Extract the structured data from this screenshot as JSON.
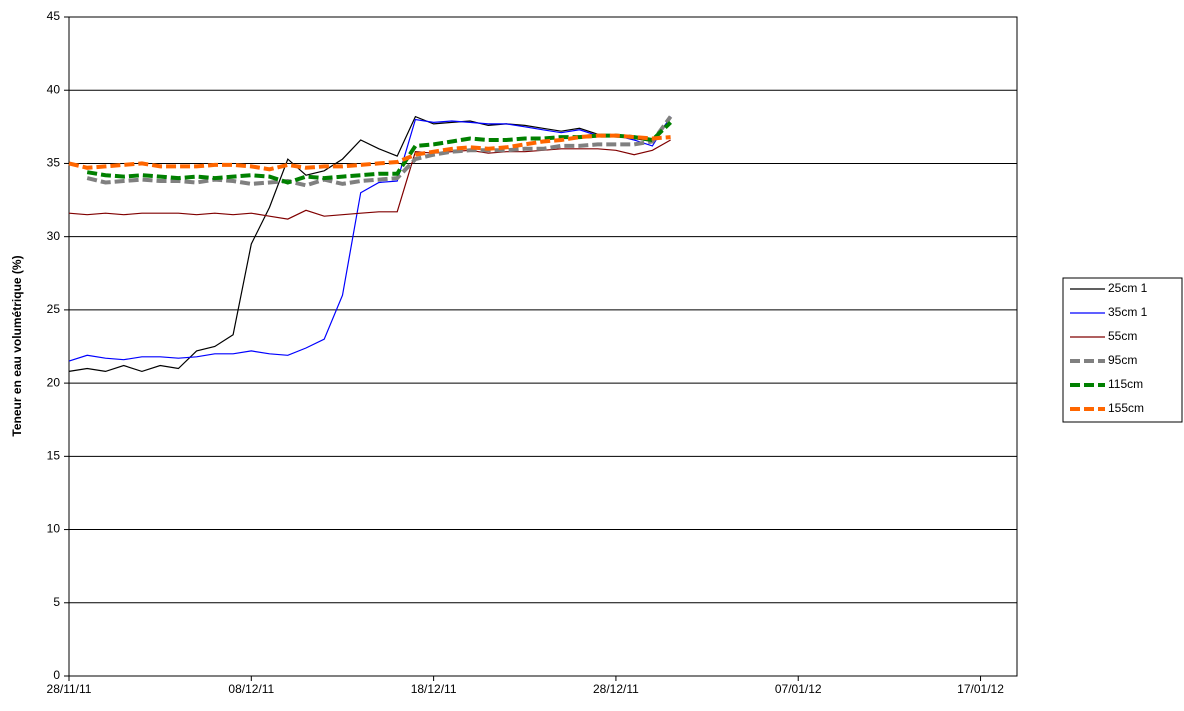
{
  "chart_data": {
    "type": "line",
    "ylabel": "Teneur en eau volumétrique (%)",
    "x": [
      "2011-11-28",
      "2011-11-29",
      "2011-11-30",
      "2011-12-01",
      "2011-12-02",
      "2011-12-03",
      "2011-12-04",
      "2011-12-05",
      "2011-12-06",
      "2011-12-07",
      "2011-12-08",
      "2011-12-09",
      "2011-12-10",
      "2011-12-11",
      "2011-12-12",
      "2011-12-13",
      "2011-12-14",
      "2011-12-15",
      "2011-12-16",
      "2011-12-17",
      "2011-12-18",
      "2011-12-19",
      "2011-12-20",
      "2011-12-21",
      "2011-12-22",
      "2011-12-23",
      "2011-12-24",
      "2011-12-25",
      "2011-12-26",
      "2011-12-27",
      "2011-12-28",
      "2011-12-29",
      "2011-12-30",
      "2011-12-31"
    ],
    "xlim": [
      "2011-11-28",
      "2012-01-19"
    ],
    "xticks": [
      {
        "value": "2011-11-28",
        "label": "28/11/11"
      },
      {
        "value": "2011-12-08",
        "label": "08/12/11"
      },
      {
        "value": "2011-12-18",
        "label": "18/12/11"
      },
      {
        "value": "2011-12-28",
        "label": "28/12/11"
      },
      {
        "value": "2012-01-07",
        "label": "07/01/12"
      },
      {
        "value": "2012-01-17",
        "label": "17/01/12"
      }
    ],
    "ylim": [
      0,
      45
    ],
    "yticks": [
      0,
      5,
      10,
      15,
      20,
      25,
      30,
      35,
      40,
      45
    ],
    "grid": true,
    "legend": "right",
    "series": [
      {
        "name": "25cm 1",
        "color": "#000000",
        "style": "solid",
        "values": [
          20.8,
          21.0,
          20.8,
          21.2,
          20.8,
          21.2,
          21.0,
          22.2,
          22.5,
          23.3,
          29.5,
          32.0,
          35.3,
          34.2,
          34.5,
          35.3,
          36.6,
          36.0,
          35.5,
          38.2,
          37.7,
          37.8,
          37.9,
          37.6,
          37.7,
          37.6,
          37.4,
          37.2,
          37.4,
          37.0,
          36.9,
          36.7,
          36.5,
          38.1
        ]
      },
      {
        "name": "35cm 1",
        "color": "#0000ff",
        "style": "solid",
        "values": [
          21.5,
          21.9,
          21.7,
          21.6,
          21.8,
          21.8,
          21.7,
          21.8,
          22.0,
          22.0,
          22.2,
          22.0,
          21.9,
          22.4,
          23.0,
          26.0,
          33.0,
          33.7,
          33.8,
          38.0,
          37.8,
          37.9,
          37.8,
          37.7,
          37.7,
          37.5,
          37.3,
          37.1,
          37.3,
          36.9,
          36.9,
          36.6,
          36.2,
          38.2
        ]
      },
      {
        "name": "55cm",
        "color": "#800000",
        "style": "solid",
        "values": [
          31.6,
          31.5,
          31.6,
          31.5,
          31.6,
          31.6,
          31.6,
          31.5,
          31.6,
          31.5,
          31.6,
          31.4,
          31.2,
          31.8,
          31.4,
          31.5,
          31.6,
          31.7,
          31.7,
          35.8,
          35.7,
          35.8,
          35.9,
          35.7,
          35.8,
          35.8,
          35.9,
          36.0,
          36.0,
          36.0,
          35.9,
          35.6,
          35.9,
          36.6
        ]
      },
      {
        "name": "95cm",
        "color": "#808080",
        "style": "dashed",
        "values": [
          null,
          34.0,
          33.7,
          33.8,
          33.9,
          33.8,
          33.8,
          33.7,
          33.9,
          33.8,
          33.6,
          33.7,
          33.8,
          33.5,
          33.9,
          33.6,
          33.8,
          33.9,
          34.0,
          35.3,
          35.6,
          35.8,
          35.9,
          35.9,
          35.9,
          36.0,
          36.0,
          36.2,
          36.2,
          36.3,
          36.3,
          36.3,
          36.5,
          38.2
        ]
      },
      {
        "name": "115cm",
        "color": "#008000",
        "style": "dashed",
        "values": [
          null,
          34.4,
          34.2,
          34.1,
          34.2,
          34.1,
          34.0,
          34.1,
          34.0,
          34.1,
          34.2,
          34.1,
          33.7,
          34.1,
          34.0,
          34.1,
          34.2,
          34.3,
          34.3,
          36.2,
          36.3,
          36.5,
          36.7,
          36.6,
          36.6,
          36.7,
          36.7,
          36.8,
          36.8,
          36.9,
          36.9,
          36.8,
          36.6,
          37.8
        ]
      },
      {
        "name": "155cm",
        "color": "#ff6600",
        "style": "dashed",
        "values": [
          35.0,
          34.7,
          34.8,
          34.9,
          35.0,
          34.8,
          34.8,
          34.8,
          34.9,
          34.9,
          34.8,
          34.6,
          34.9,
          34.7,
          34.8,
          34.8,
          34.9,
          35.0,
          35.1,
          35.6,
          35.8,
          36.0,
          36.1,
          36.0,
          36.1,
          36.3,
          36.5,
          36.6,
          36.8,
          36.9,
          36.9,
          36.8,
          36.7,
          36.8
        ]
      }
    ]
  }
}
